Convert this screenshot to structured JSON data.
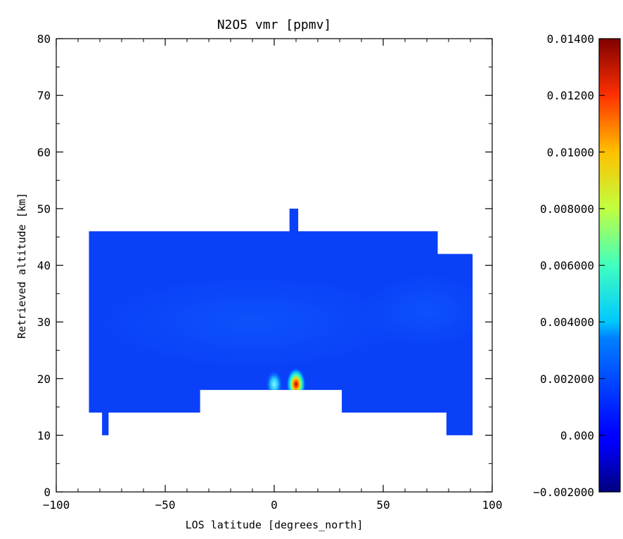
{
  "chart_data": [
    {
      "type": "heatmap",
      "title": "N2O5 vmr [ppmv]",
      "xlabel": "LOS latitude [degrees_north]",
      "ylabel": "Retrieved altitude [km]",
      "xlim": [
        -100,
        100
      ],
      "ylim": [
        0,
        80
      ],
      "xticks": [
        "-100",
        "-50",
        "0",
        "50",
        "100"
      ],
      "yticks": [
        "0",
        "10",
        "20",
        "30",
        "40",
        "50",
        "60",
        "70",
        "80"
      ],
      "colormap": "jet",
      "data_region": {
        "outline_lat_alt": [
          [
            -85,
            14
          ],
          [
            -79,
            14
          ],
          [
            -79,
            10
          ],
          [
            -76,
            10
          ],
          [
            -76,
            14
          ],
          [
            -34,
            14
          ],
          [
            -34,
            18
          ],
          [
            31,
            18
          ],
          [
            31,
            14
          ],
          [
            79,
            14
          ],
          [
            79,
            10
          ],
          [
            91,
            10
          ],
          [
            91,
            42
          ],
          [
            75,
            42
          ],
          [
            75,
            46
          ],
          [
            11,
            46
          ],
          [
            11,
            50
          ],
          [
            7,
            50
          ],
          [
            7,
            46
          ],
          [
            -85,
            46
          ]
        ],
        "background_value": 0.0,
        "hotspots": [
          {
            "lat": 10,
            "alt": 19,
            "value": 0.014
          },
          {
            "lat": 0,
            "alt": 19,
            "value": 0.0035
          }
        ]
      }
    },
    {
      "type": "colorbar",
      "colormap": "jet",
      "range": [
        -0.002,
        0.014
      ],
      "tick_values": [
        -0.002,
        0.0,
        0.002,
        0.004,
        0.006,
        0.008,
        0.01,
        0.012,
        0.014
      ],
      "tick_labels": [
        "-0.002000",
        "0.000",
        "0.002000",
        "0.004000",
        "0.006000",
        "0.008000",
        "0.01000",
        "0.01200",
        "0.01400"
      ]
    }
  ]
}
